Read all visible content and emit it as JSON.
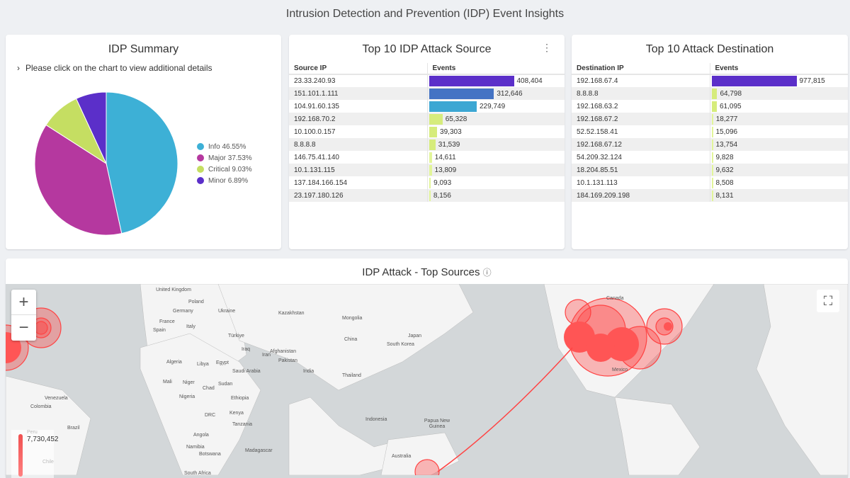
{
  "page_title": "Intrusion Detection and Prevention (IDP) Event Insights",
  "summary": {
    "title": "IDP Summary",
    "hint": "Please click on the chart to view additional details",
    "slices": [
      {
        "label": "Info 46.55%",
        "value": 46.55,
        "color": "#3db0d6"
      },
      {
        "label": "Major 37.53%",
        "value": 37.53,
        "color": "#b5389f"
      },
      {
        "label": "Critical 9.03%",
        "value": 9.03,
        "color": "#c5de62"
      },
      {
        "label": "Minor 6.89%",
        "value": 6.89,
        "color": "#5b2fc9"
      }
    ]
  },
  "sources": {
    "title": "Top 10 IDP Attack Source",
    "col_ip": "Source IP",
    "col_events": "Events",
    "menu": "⋮",
    "rows": [
      [
        "23.33.240.93",
        "408,404",
        408404,
        "#5b2fc9"
      ],
      [
        "151.101.1.111",
        "312,646",
        312646,
        "#4473c4"
      ],
      [
        "104.91.60.135",
        "229,749",
        229749,
        "#3ca7d3"
      ],
      [
        "192.168.70.2",
        "65,328",
        65328,
        "#d6ec7c"
      ],
      [
        "10.100.0.157",
        "39,303",
        39303,
        "#d6ec7c"
      ],
      [
        "8.8.8.8",
        "31,539",
        31539,
        "#d6ec7c"
      ],
      [
        "146.75.41.140",
        "14,611",
        14611,
        "#e2f59a"
      ],
      [
        "10.1.131.115",
        "13,809",
        13809,
        "#e2f59a"
      ],
      [
        "137.184.166.154",
        "9,093",
        9093,
        "#e2f59a"
      ],
      [
        "23.197.180.126",
        "8,156",
        8156,
        "#e2f59a"
      ]
    ]
  },
  "destinations": {
    "title": "Top 10 Attack Destination",
    "col_ip": "Destination IP",
    "col_events": "Events",
    "rows": [
      [
        "192.168.67.4",
        "977,815",
        977815,
        "#5b2fc9"
      ],
      [
        "8.8.8.8",
        "64,798",
        64798,
        "#d6ec7c"
      ],
      [
        "192.168.63.2",
        "61,095",
        61095,
        "#d6ec7c"
      ],
      [
        "192.168.67.2",
        "18,277",
        18277,
        "#e2f59a"
      ],
      [
        "52.52.158.41",
        "15,096",
        15096,
        "#e2f59a"
      ],
      [
        "192.168.67.12",
        "13,754",
        13754,
        "#e2f59a"
      ],
      [
        "54.209.32.124",
        "9,828",
        9828,
        "#e2f59a"
      ],
      [
        "18.204.85.51",
        "9,632",
        9632,
        "#e2f59a"
      ],
      [
        "10.1.131.113",
        "8,508",
        8508,
        "#e2f59a"
      ],
      [
        "184.169.209.198",
        "8,131",
        8131,
        "#e2f59a"
      ]
    ]
  },
  "map": {
    "title": "IDP Attack - Top Sources",
    "info": "ⓘ",
    "zoom_in": "+",
    "zoom_out": "−",
    "fullscreen": "⛶",
    "scale_max": "7,730,452",
    "labels": [
      "United Kingdom",
      "Poland",
      "Germany",
      "Ukraine",
      "France",
      "Italy",
      "Spain",
      "Türkiye",
      "Iraq",
      "Iran",
      "Afghanistan",
      "Pakistan",
      "Kazakhstan",
      "Mongolia",
      "China",
      "South Korea",
      "Japan",
      "India",
      "Thailand",
      "Algeria",
      "Libya",
      "Egypt",
      "Saudi Arabia",
      "Mali",
      "Niger",
      "Chad",
      "Sudan",
      "Nigeria",
      "Ethiopia",
      "Kenya",
      "DRC",
      "Tanzania",
      "Angola",
      "Namibia",
      "Botswana",
      "Madagascar",
      "South Africa",
      "Venezuela",
      "Colombia",
      "Peru",
      "Brazil",
      "Chile",
      "Indonesia",
      "Papua New Guinea",
      "Australia",
      "Canada",
      "Mexico"
    ]
  }
}
